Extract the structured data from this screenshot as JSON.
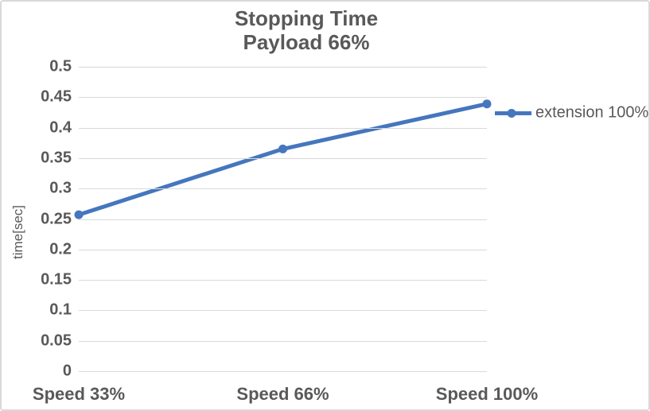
{
  "chart": {
    "title_line1": "Stopping Time",
    "title_line2": "Payload 66%",
    "y_axis_title": "time[sec]",
    "legend_label": "extension 100%",
    "colors": {
      "line": "#4576BE",
      "gridline": "#D9D9D9",
      "text": "#595959",
      "border": "#D9D9D9",
      "background": "#FFFFFF"
    }
  },
  "chart_data": {
    "type": "line",
    "title": "Stopping Time Payload 66%",
    "categories": [
      "Speed 33%",
      "Speed 66%",
      "Speed 100%"
    ],
    "series": [
      {
        "name": "extension 100%",
        "values": [
          0.257,
          0.365,
          0.439
        ]
      }
    ],
    "xlabel": "",
    "ylabel": "time[sec]",
    "ylim": [
      0,
      0.5
    ],
    "ytick_step": 0.05,
    "yticks": [
      "0.5",
      "0.45",
      "0.4",
      "0.35",
      "0.3",
      "0.25",
      "0.2",
      "0.15",
      "0.1",
      "0.05",
      "0"
    ],
    "grid": true,
    "legend_position": "right",
    "markers": "circle"
  }
}
